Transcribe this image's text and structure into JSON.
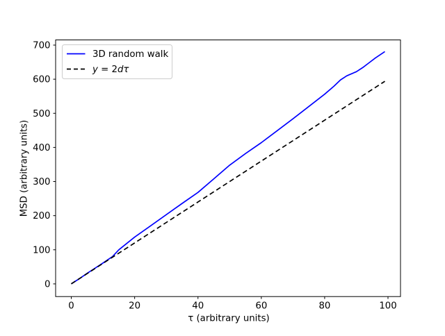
{
  "figure": {
    "background": "#ffffff",
    "frame_color": "#000000"
  },
  "legend": {
    "position": "upper-left",
    "border_color": "#cccccc",
    "entries": [
      {
        "label": "3D random walk",
        "style": "solid",
        "color": "#0000ff"
      },
      {
        "label": "y = 2dτ",
        "style": "dashed",
        "color": "#000000",
        "parts": {
          "y": "y",
          "eq": " = 2",
          "d": "d",
          "tau": "τ"
        }
      }
    ]
  },
  "chart_data": {
    "type": "line",
    "title": "",
    "xlabel": "τ (arbitrary units)",
    "ylabel": "MSD (arbitrary units)",
    "xlim": [
      -4.95,
      103.95
    ],
    "ylim": [
      -37.2,
      715.2
    ],
    "xticks": [
      0,
      20,
      40,
      60,
      80,
      100
    ],
    "yticks": [
      0,
      100,
      200,
      300,
      400,
      500,
      600,
      700
    ],
    "grid": false,
    "legend_position": "upper-left",
    "series": [
      {
        "name": "3D random walk",
        "color": "#0000ff",
        "style": "solid",
        "x": [
          0,
          3,
          5,
          8,
          10,
          13,
          15,
          20,
          25,
          30,
          35,
          40,
          45,
          50,
          55,
          60,
          65,
          70,
          75,
          80,
          83,
          85,
          87,
          90,
          92,
          94,
          96,
          99
        ],
        "y": [
          0,
          18,
          31,
          49,
          61,
          80,
          100,
          137,
          170,
          203,
          236,
          268,
          308,
          348,
          382,
          414,
          449,
          484,
          520,
          556,
          580,
          598,
          610,
          622,
          634,
          648,
          662,
          681
        ]
      },
      {
        "name": "y = 2dτ",
        "color": "#000000",
        "style": "dashed",
        "x": [
          0,
          99
        ],
        "y": [
          0,
          594
        ]
      }
    ]
  }
}
